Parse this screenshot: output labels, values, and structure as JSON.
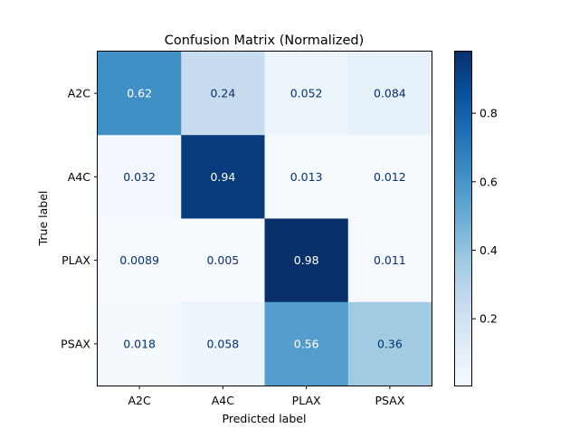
{
  "chart_data": {
    "type": "heatmap",
    "title": "Confusion Matrix (Normalized)",
    "xlabel": "Predicted label",
    "ylabel": "True label",
    "x_categories": [
      "A2C",
      "A4C",
      "PLAX",
      "PSAX"
    ],
    "y_categories": [
      "A2C",
      "A4C",
      "PLAX",
      "PSAX"
    ],
    "values": [
      [
        0.62,
        0.24,
        0.052,
        0.084
      ],
      [
        0.032,
        0.94,
        0.013,
        0.012
      ],
      [
        0.0089,
        0.005,
        0.98,
        0.011
      ],
      [
        0.018,
        0.058,
        0.56,
        0.36
      ]
    ],
    "cell_labels": [
      [
        "0.62",
        "0.24",
        "0.052",
        "0.084"
      ],
      [
        "0.032",
        "0.94",
        "0.013",
        "0.012"
      ],
      [
        "0.0089",
        "0.005",
        "0.98",
        "0.011"
      ],
      [
        "0.018",
        "0.058",
        "0.56",
        "0.36"
      ]
    ],
    "colormap": "Blues",
    "colorbar": {
      "min": 0.005,
      "max": 0.98,
      "ticks": [
        0.2,
        0.4,
        0.6,
        0.8
      ],
      "tick_labels": [
        "0.2",
        "0.4",
        "0.6",
        "0.8"
      ]
    },
    "grid": false
  },
  "colors": {
    "low_text": "#08306b",
    "high_text": "#ffffff",
    "axis": "#000000",
    "blues": [
      "#f7fbff",
      "#deebf7",
      "#c6dbef",
      "#9ecae1",
      "#6baed6",
      "#4292c6",
      "#2171b5",
      "#08519c",
      "#08306b"
    ]
  }
}
